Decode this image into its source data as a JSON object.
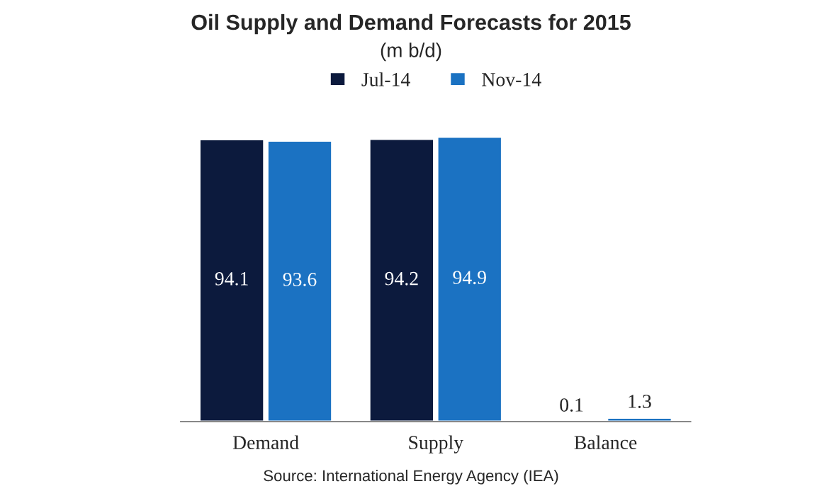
{
  "chart_data": {
    "type": "bar",
    "title": "Oil Supply and Demand Forecasts for 2015",
    "subtitle": "(m b/d)",
    "categories": [
      "Demand",
      "Supply",
      "Balance"
    ],
    "series": [
      {
        "name": "Jul-14",
        "color": "#0c1a3d",
        "values": [
          94.1,
          94.2,
          0.1
        ]
      },
      {
        "name": "Nov-14",
        "color": "#1b72c2",
        "values": [
          93.6,
          94.9,
          1.3
        ]
      }
    ],
    "data_labels": true,
    "legend": "top",
    "grid": false,
    "annotations": [
      "Source: International Energy Agency (IEA)"
    ]
  }
}
